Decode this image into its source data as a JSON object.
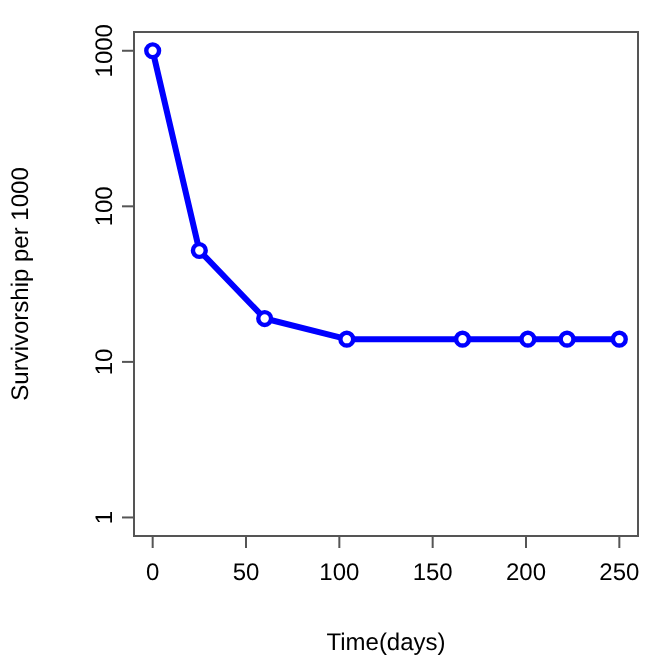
{
  "chart_data": {
    "type": "line",
    "xlabel": "Time(days)",
    "ylabel": "Survivorship per 1000",
    "log": "y",
    "x": [
      0,
      25,
      60,
      104,
      166,
      201,
      222,
      250
    ],
    "series": [
      {
        "color": "#0000ff",
        "values": [
          1000,
          52,
          19,
          14,
          14,
          14,
          14,
          14
        ]
      }
    ],
    "xlim": [
      -10,
      260
    ],
    "xticks": [
      0,
      50,
      100,
      150,
      200,
      250
    ],
    "ylim": [
      0.76,
      1320
    ],
    "yticks": [
      1,
      10,
      100,
      1000
    ],
    "marker": "circle",
    "line_style": "solid"
  }
}
